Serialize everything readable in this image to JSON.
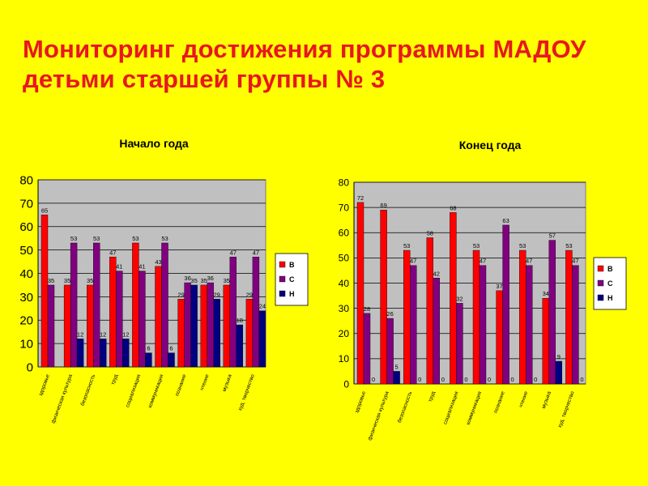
{
  "page": {
    "title": "Мониторинг достижения программы МАДОУ детьми старшей группы № 3"
  },
  "colors": {
    "background": "#ffff00",
    "title": "#e8171f",
    "plot_area": "#c0c0c0",
    "series_v": "#ff0000",
    "series_s": "#800080",
    "series_n": "#000080"
  },
  "chart_data": [
    {
      "type": "bar",
      "title": "Начало года",
      "xlabel": "",
      "ylabel": "",
      "ylim": [
        0,
        80
      ],
      "yticks": [
        0,
        10,
        20,
        30,
        40,
        50,
        60,
        70,
        80
      ],
      "grid": true,
      "legend": "right",
      "categories": [
        "здоровье",
        "физическая культура",
        "безопасность",
        "труд",
        "социализация",
        "коммуникация",
        "познание",
        "чтение",
        "музыка",
        "худ. творчество"
      ],
      "series": [
        {
          "name": "В",
          "color": "#ff0000",
          "values": [
            65,
            35,
            35,
            47,
            53,
            43,
            29,
            35,
            35,
            29
          ]
        },
        {
          "name": "С",
          "color": "#800080",
          "values": [
            35,
            53,
            53,
            41,
            41,
            53,
            36,
            36,
            47,
            47
          ]
        },
        {
          "name": "Н",
          "color": "#000080",
          "values": [
            null,
            12,
            12,
            12,
            6,
            6,
            35,
            29,
            18,
            24
          ]
        }
      ],
      "labels": [
        [
          "65",
          "35",
          "35",
          "47",
          "53",
          "43",
          "29",
          "35",
          "35",
          "29"
        ],
        [
          "35",
          "53",
          "53",
          "41",
          "41",
          "53",
          "36",
          "36",
          "47",
          "47"
        ],
        [
          "",
          "12",
          "12",
          "12",
          "6",
          "6",
          "35",
          "29",
          "18",
          "24"
        ]
      ]
    },
    {
      "type": "bar",
      "title": "Конец года",
      "xlabel": "",
      "ylabel": "",
      "ylim": [
        0,
        80
      ],
      "yticks": [
        0,
        10,
        20,
        30,
        40,
        50,
        60,
        70,
        80
      ],
      "grid": true,
      "legend": "right",
      "categories": [
        "здоровье",
        "физическая культура",
        "безопасность",
        "труд",
        "социализация",
        "коммуникация",
        "познание",
        "чтение",
        "музыка",
        "худ. творчество"
      ],
      "series": [
        {
          "name": "В",
          "color": "#ff0000",
          "values": [
            72,
            69,
            53,
            58,
            68,
            53,
            37,
            53,
            34,
            53
          ]
        },
        {
          "name": "С",
          "color": "#800080",
          "values": [
            28,
            26,
            47,
            42,
            32,
            47,
            63,
            47,
            57,
            47
          ]
        },
        {
          "name": "Н",
          "color": "#000080",
          "values": [
            0,
            5,
            0,
            0,
            0,
            0,
            0,
            0,
            9,
            0
          ]
        }
      ],
      "labels": [
        [
          "72",
          "69",
          "53",
          "58",
          "68",
          "53",
          "37",
          "53",
          "34",
          "53"
        ],
        [
          "28",
          "26",
          "47",
          "42",
          "32",
          "47",
          "63",
          "47",
          "57",
          "47"
        ],
        [
          "0",
          "5",
          "0",
          "0",
          "0",
          "0",
          "0",
          "0",
          "9",
          "0"
        ]
      ]
    }
  ]
}
